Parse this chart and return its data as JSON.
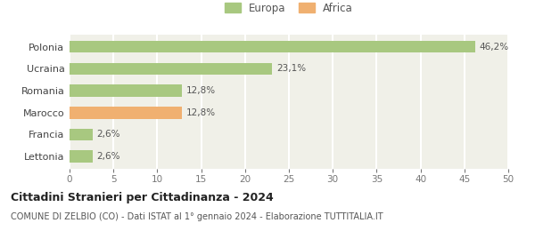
{
  "categories": [
    "Lettonia",
    "Francia",
    "Marocco",
    "Romania",
    "Ucraina",
    "Polonia"
  ],
  "values": [
    2.6,
    2.6,
    12.8,
    12.8,
    23.1,
    46.2
  ],
  "labels": [
    "2,6%",
    "2,6%",
    "12,8%",
    "12,8%",
    "23,1%",
    "46,2%"
  ],
  "colors": [
    "#a8c880",
    "#a8c880",
    "#f0b070",
    "#a8c880",
    "#a8c880",
    "#a8c880"
  ],
  "legend": [
    {
      "label": "Europa",
      "color": "#a8c880"
    },
    {
      "label": "Africa",
      "color": "#f0b070"
    }
  ],
  "title_bold": "Cittadini Stranieri per Cittadinanza - 2024",
  "subtitle": "COMUNE DI ZELBIO (CO) - Dati ISTAT al 1° gennaio 2024 - Elaborazione TUTTITALIA.IT",
  "xlim": [
    0,
    50
  ],
  "xticks": [
    0,
    5,
    10,
    15,
    20,
    25,
    30,
    35,
    40,
    45,
    50
  ],
  "background_color": "#ffffff",
  "bar_background": "#f0f0e8",
  "grid_color": "#ffffff"
}
